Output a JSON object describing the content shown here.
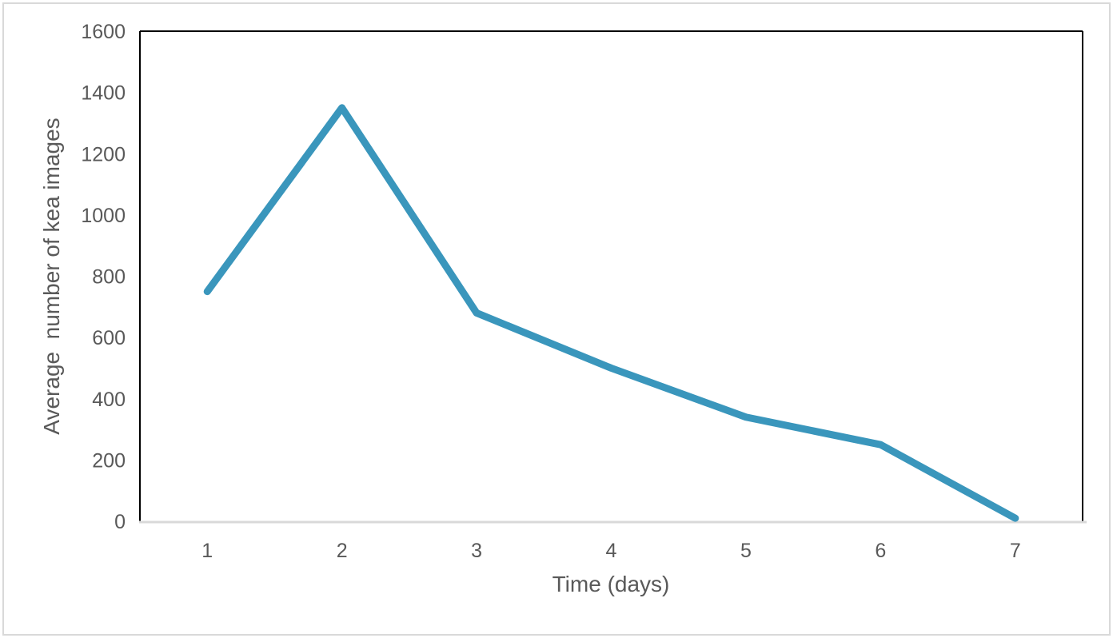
{
  "chart_data": {
    "type": "line",
    "title": "",
    "categories": [
      1,
      2,
      3,
      4,
      5,
      6,
      7
    ],
    "series": [
      {
        "name": "Average number of kea images",
        "values": [
          750,
          1350,
          680,
          500,
          340,
          250,
          10
        ]
      }
    ],
    "values": [
      750,
      1350,
      680,
      500,
      340,
      250,
      10
    ],
    "xlabel": "Time (days)",
    "ylabel": "Average  number of kea images",
    "xlim": [
      0.5,
      7.5
    ],
    "ylim": [
      0,
      1600
    ],
    "yticks": [
      0,
      200,
      400,
      600,
      800,
      1000,
      1200,
      1400,
      1600
    ],
    "xticks": [
      1,
      2,
      3,
      4,
      5,
      6,
      7
    ],
    "grid": false,
    "legend_position": "none",
    "markers": false,
    "line_color": "#3a96bc",
    "line_width": 9,
    "axis_text_color": "#595959",
    "plot_border_color": "#000000",
    "baseline_color": "#d9d9d9",
    "outer_border_color": "#d9d9d9",
    "background_color": "#ffffff"
  }
}
